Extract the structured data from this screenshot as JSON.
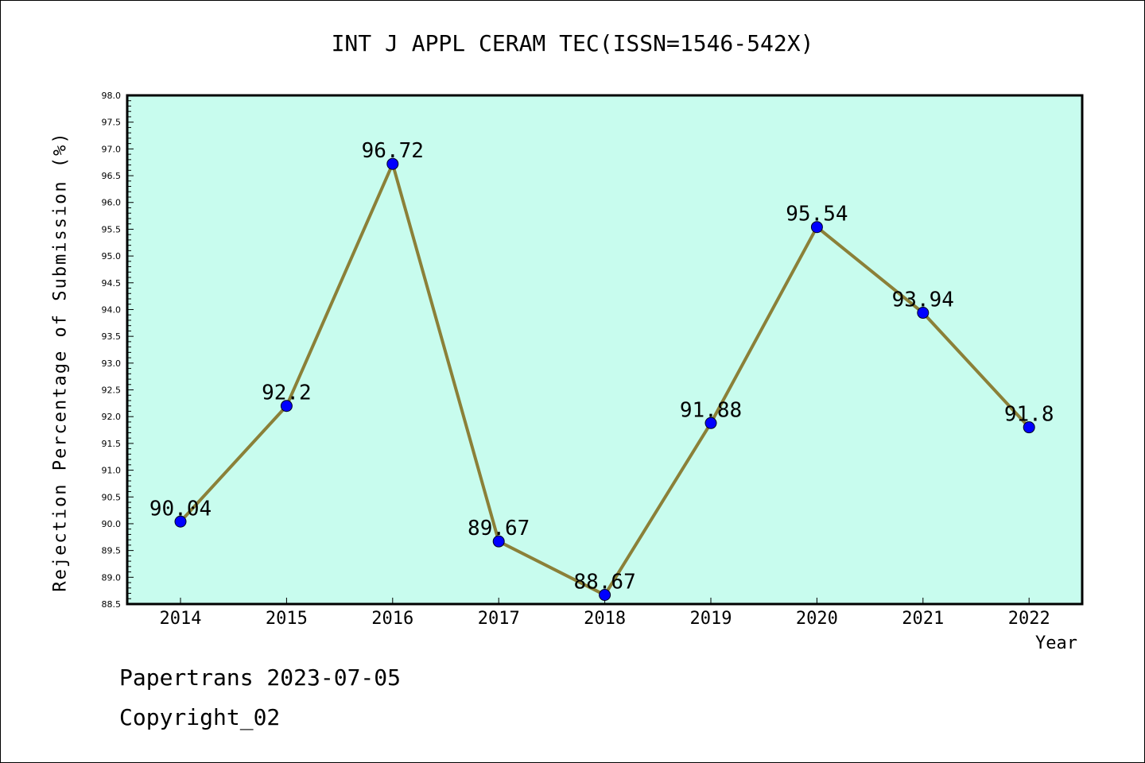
{
  "chart_data": {
    "type": "line",
    "title": "INT J APPL CERAM TEC(ISSN=1546-542X)",
    "xlabel": "Year",
    "ylabel": "Rejection Percentage of Submission (%)",
    "categories": [
      "2014",
      "2015",
      "2016",
      "2017",
      "2018",
      "2019",
      "2020",
      "2021",
      "2022"
    ],
    "values": [
      90.04,
      92.2,
      96.72,
      89.67,
      88.67,
      91.88,
      95.54,
      93.94,
      91.8
    ],
    "data_labels": [
      "90.04",
      "92.2",
      "96.72",
      "89.67",
      "88.67",
      "91.88",
      "95.54",
      "93.94",
      "91.8"
    ],
    "ylim": [
      88.5,
      98.0
    ],
    "yticks": [
      "88.5",
      "89.0",
      "89.5",
      "90.0",
      "90.5",
      "91.0",
      "91.5",
      "92.0",
      "92.5",
      "93.0",
      "93.5",
      "94.0",
      "94.5",
      "95.0",
      "95.5",
      "96.0",
      "96.5",
      "97.0",
      "97.5",
      "98.0"
    ],
    "grid": false,
    "colors": {
      "plot_background": "#c8fcee",
      "line": "#8b8038",
      "marker": "#0000ff"
    }
  },
  "footer": {
    "line1": "Papertrans 2023-07-05",
    "line2": "Copyright_02"
  }
}
